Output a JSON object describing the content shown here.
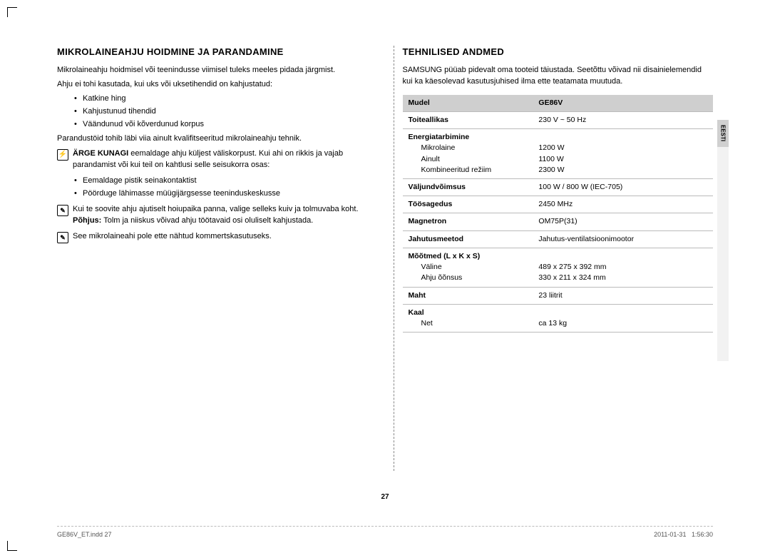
{
  "left": {
    "heading": "MIKROLAINEAHJU HOIDMINE JA PARANDAMINE",
    "p1": "Mikrolaineahju hoidmisel või teenindusse viimisel tuleks meeles pidada järgmist.",
    "p2": "Ahju ei tohi kasutada, kui uks või uksetihendid on kahjustatud:",
    "bullets1": [
      "Katkine hing",
      "Kahjustunud tihendid",
      "Väändunud või kõverdunud korpus"
    ],
    "p3": "Parandustöid tohib läbi viia ainult kvalifitseeritud mikrolaineahju tehnik.",
    "warn1_bold": "ÄRGE KUNAGI",
    "warn1_rest": " eemaldage ahju küljest väliskorpust. Kui ahi on rikkis ja vajab parandamist või kui teil on kahtlusi selle seisukorra osas:",
    "bullets2": [
      "Eemaldage pistik seinakontaktist",
      "Pöörduge lähimasse müügijärgsesse teeninduskeskusse"
    ],
    "note2": "Kui te soovite ahju ajutiselt hoiupaika panna, valige selleks kuiv ja tolmuvaba koht.",
    "note2_reason_bold": "Põhjus:",
    "note2_reason_rest": " Tolm ja niiskus võivad ahju töötavaid osi oluliselt kahjustada.",
    "note3": "See mikrolaineahi pole ette nähtud kommertskasutuseks."
  },
  "right": {
    "heading": "TEHNILISED ANDMED",
    "intro": "SAMSUNG püüab pidevalt oma tooteid täiustada. Seetõttu võivad nii disainielemendid kui ka käesolevad kasutusjuhised ilma ette teatamata muutuda.",
    "table": {
      "header": [
        "Mudel",
        "GE86V"
      ],
      "rows": [
        {
          "label": "Toiteallikas",
          "value": "230 V ~ 50 Hz"
        },
        {
          "label": "Energiatarbimine",
          "subs": [
            {
              "l": "Mikrolaine",
              "v": "1200 W"
            },
            {
              "l": "Ainult",
              "v": "1100 W"
            },
            {
              "l": "Kombineeritud režiim",
              "v": "2300 W"
            }
          ]
        },
        {
          "label": "Väljundvõimsus",
          "value": "100 W / 800 W (IEC-705)"
        },
        {
          "label": "Töösagedus",
          "value": "2450 MHz"
        },
        {
          "label": "Magnetron",
          "value": "OM75P(31)"
        },
        {
          "label": "Jahutusmeetod",
          "value": "Jahutus-ventilatsioonimootor"
        },
        {
          "label": "Mõõtmed (L x K x S)",
          "subs": [
            {
              "l": "Väline",
              "v": "489 x 275 x 392 mm"
            },
            {
              "l": "Ahju õõnsus",
              "v": "330 x 211 x 324 mm"
            }
          ]
        },
        {
          "label": "Maht",
          "value": "23 liitrit"
        },
        {
          "label": "Kaal",
          "subs": [
            {
              "l": "Net",
              "v": "ca 13 kg"
            }
          ]
        }
      ]
    }
  },
  "side_tab": "EESTI",
  "page_number": "27",
  "footer_left": "GE86V_ET.indd   27",
  "footer_right_date": "2011-01-31",
  "footer_right_time": "1:56:30"
}
